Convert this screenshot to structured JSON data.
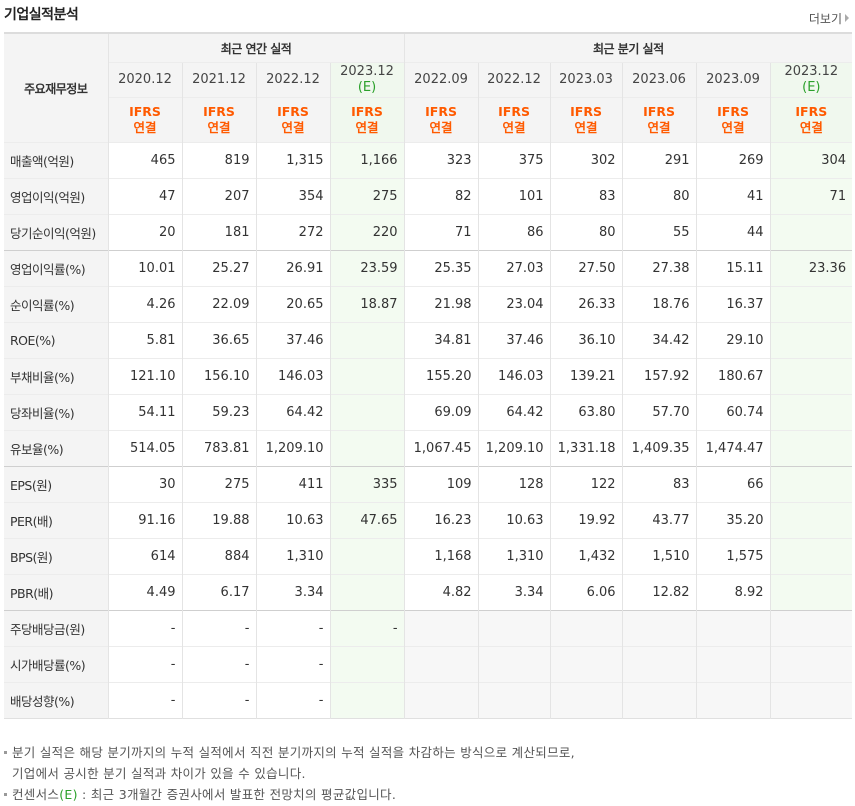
{
  "section_title": "기업실적분석",
  "more_label": "더보기",
  "corner_label": "주요재무정보",
  "group_annual": "최근 연간 실적",
  "group_quarter": "최근 분기 실적",
  "periods": [
    "2020.12",
    "2021.12",
    "2022.12",
    "2023.12",
    "2022.09",
    "2022.12",
    "2023.03",
    "2023.06",
    "2023.09",
    "2023.12"
  ],
  "estimate_mark": "(E)",
  "ifrs_top": "IFRS",
  "ifrs_bottom": "연결",
  "rows": [
    {
      "label": "매출액(억원)",
      "values": [
        "465",
        "819",
        "1,315",
        "1,166",
        "323",
        "375",
        "302",
        "291",
        "269",
        "304"
      ]
    },
    {
      "label": "영업이익(억원)",
      "values": [
        "47",
        "207",
        "354",
        "275",
        "82",
        "101",
        "83",
        "80",
        "41",
        "71"
      ]
    },
    {
      "label": "당기순이익(억원)",
      "values": [
        "20",
        "181",
        "272",
        "220",
        "71",
        "86",
        "80",
        "55",
        "44",
        ""
      ]
    },
    {
      "label": "영업이익률(%)",
      "values": [
        "10.01",
        "25.27",
        "26.91",
        "23.59",
        "25.35",
        "27.03",
        "27.50",
        "27.38",
        "15.11",
        "23.36"
      ]
    },
    {
      "label": "순이익률(%)",
      "values": [
        "4.26",
        "22.09",
        "20.65",
        "18.87",
        "21.98",
        "23.04",
        "26.33",
        "18.76",
        "16.37",
        ""
      ]
    },
    {
      "label": "ROE(%)",
      "values": [
        "5.81",
        "36.65",
        "37.46",
        "",
        "34.81",
        "37.46",
        "36.10",
        "34.42",
        "29.10",
        ""
      ]
    },
    {
      "label": "부채비율(%)",
      "values": [
        "121.10",
        "156.10",
        "146.03",
        "",
        "155.20",
        "146.03",
        "139.21",
        "157.92",
        "180.67",
        ""
      ]
    },
    {
      "label": "당좌비율(%)",
      "values": [
        "54.11",
        "59.23",
        "64.42",
        "",
        "69.09",
        "64.42",
        "63.80",
        "57.70",
        "60.74",
        ""
      ]
    },
    {
      "label": "유보율(%)",
      "values": [
        "514.05",
        "783.81",
        "1,209.10",
        "",
        "1,067.45",
        "1,209.10",
        "1,331.18",
        "1,409.35",
        "1,474.47",
        ""
      ]
    },
    {
      "label": "EPS(원)",
      "values": [
        "30",
        "275",
        "411",
        "335",
        "109",
        "128",
        "122",
        "83",
        "66",
        ""
      ]
    },
    {
      "label": "PER(배)",
      "values": [
        "91.16",
        "19.88",
        "10.63",
        "47.65",
        "16.23",
        "10.63",
        "19.92",
        "43.77",
        "35.20",
        ""
      ]
    },
    {
      "label": "BPS(원)",
      "values": [
        "614",
        "884",
        "1,310",
        "",
        "1,168",
        "1,310",
        "1,432",
        "1,510",
        "1,575",
        ""
      ]
    },
    {
      "label": "PBR(배)",
      "values": [
        "4.49",
        "6.17",
        "3.34",
        "",
        "4.82",
        "3.34",
        "6.06",
        "12.82",
        "8.92",
        ""
      ]
    },
    {
      "label": "주당배당금(원)",
      "values": [
        "-",
        "-",
        "-",
        "-",
        "",
        "",
        "",
        "",
        "",
        ""
      ]
    },
    {
      "label": "시가배당률(%)",
      "values": [
        "-",
        "-",
        "-",
        "",
        "",
        "",
        "",
        "",
        "",
        ""
      ]
    },
    {
      "label": "배당성향(%)",
      "values": [
        "-",
        "-",
        "-",
        "",
        "",
        "",
        "",
        "",
        "",
        ""
      ]
    }
  ],
  "section_break_rows": [
    3,
    9,
    13
  ],
  "notes": {
    "line1": "분기 실적은 해당 분기까지의 누적 실적에서 직전 분기까지의 누적 실적을 차감하는 방식으로 계산되므로,",
    "line2": "기업에서 공시한 분기 실적과 차이가 있을 수 있습니다.",
    "line3_a": "컨센서스",
    "line3_e": "(E)",
    "line3_b": " : 최근 3개월간 증권사에서 발표한 전망치의 평균값입니다."
  },
  "colors": {
    "ifrs": "#ff5a00",
    "estimate": "#2ba12b",
    "estimate_bg": "#f3fbf1"
  }
}
